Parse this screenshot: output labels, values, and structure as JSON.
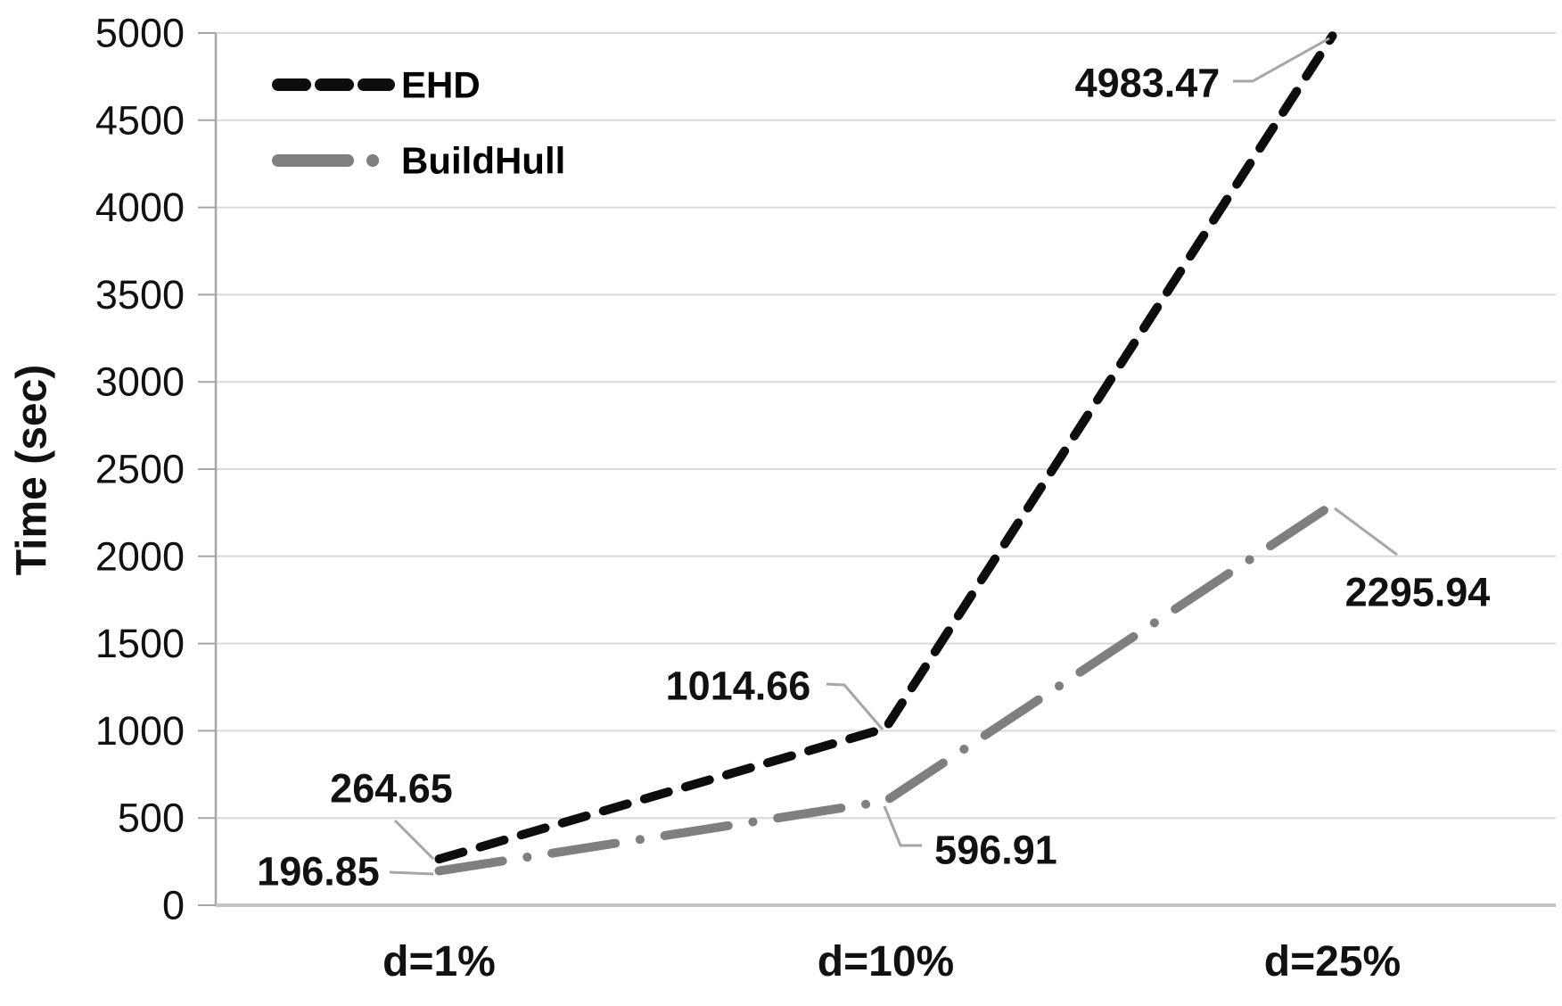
{
  "chart_data": {
    "type": "line",
    "title": "",
    "xlabel": "",
    "ylabel": "Time (sec)",
    "categories": [
      "d=1%",
      "d=10%",
      "d=25%"
    ],
    "ylim": [
      0,
      5000
    ],
    "ytick_step": 500,
    "ytick_labels": [
      "0",
      "500",
      "1000",
      "1500",
      "2000",
      "2500",
      "3000",
      "3500",
      "4000",
      "4500",
      "5000"
    ],
    "grid": "horizontal-on",
    "legend_position": "top-left-inside",
    "series": [
      {
        "name": "EHD",
        "color": "#0d0d0d",
        "line_style": "dashed",
        "values": [
          264.65,
          1014.66,
          4983.47
        ],
        "point_labels": [
          "264.65",
          "1014.66",
          "4983.47"
        ]
      },
      {
        "name": "BuildHull",
        "color": "#7f7f7f",
        "line_style": "long-dash-dot",
        "values": [
          196.85,
          596.91,
          2295.94
        ],
        "point_labels": [
          "196.85",
          "596.91",
          "2295.94"
        ]
      }
    ],
    "colors": {
      "gridline": "#d9d9d9",
      "y_axis_line": "#a6a6a6",
      "x_axis_line": "#c4c4c4",
      "tick_mark": "#a6a6a6",
      "leader_line": "#a6a6a6",
      "text": "#111111"
    }
  }
}
